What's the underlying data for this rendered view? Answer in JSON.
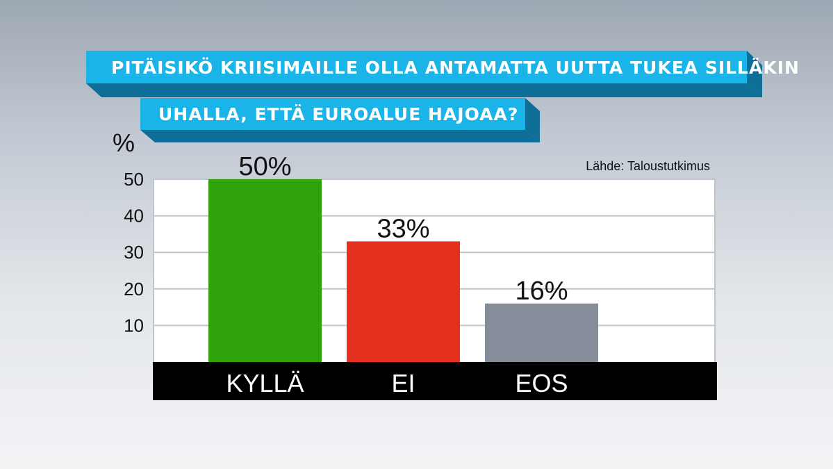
{
  "title_lines": [
    "PITÄISIKÖ KRIISIMAILLE OLLA ANTAMATTA UUTTA TUKEA SILLÄKIN",
    "UHALLA, ETTÄ EUROALUE HAJOAA?"
  ],
  "source": "Lähde: Taloustutkimus",
  "colors": {
    "banner": "#1ab4e8",
    "banner_shadow": "#0d6f98",
    "plot_bg": "#ffffff",
    "grid": "#bfc4ca",
    "axis_band": "#000000"
  },
  "chart_data": {
    "type": "bar",
    "ylabel": "%",
    "categories": [
      "KYLLÄ",
      "EI",
      "EOS"
    ],
    "values": [
      50,
      33,
      16
    ],
    "value_labels": [
      "50%",
      "33%",
      "16%"
    ],
    "bar_colors": [
      "#2fa20c",
      "#e5301e",
      "#848d99"
    ],
    "yticks": [
      10,
      20,
      30,
      40,
      50
    ],
    "ylim": [
      0,
      50
    ],
    "grid": true,
    "legend": "none"
  }
}
